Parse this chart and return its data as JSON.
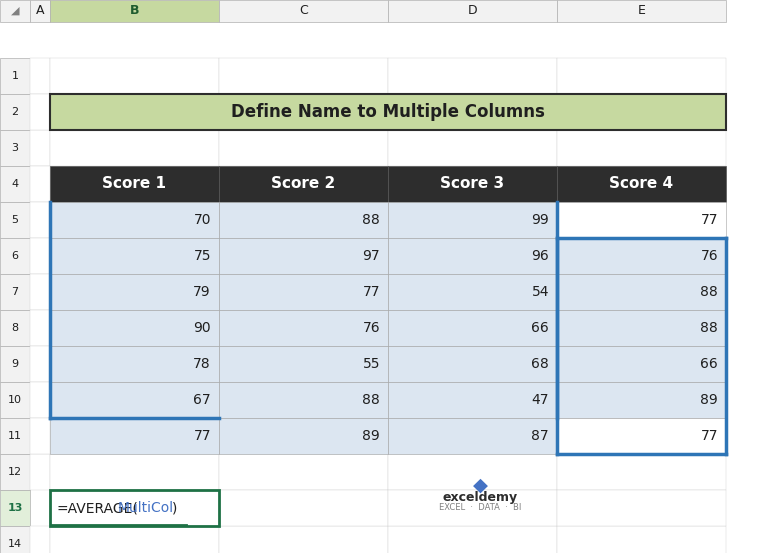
{
  "title": "Define Name to Multiple Columns",
  "title_bg": "#c6d9a0",
  "title_color": "#1f1f1f",
  "headers": [
    "Score 1",
    "Score 2",
    "Score 3",
    "Score 4"
  ],
  "data": [
    [
      70,
      88,
      99,
      77
    ],
    [
      75,
      97,
      96,
      76
    ],
    [
      79,
      77,
      54,
      88
    ],
    [
      90,
      76,
      66,
      88
    ],
    [
      78,
      55,
      68,
      66
    ],
    [
      67,
      88,
      47,
      89
    ],
    [
      77,
      89,
      87,
      77
    ]
  ],
  "header_bg": "#2d2d2d",
  "header_fg": "#ffffff",
  "cell_bg_blue": "#dce6f1",
  "cell_bg_white": "#ffffff",
  "formula_color_name": "#4472c4",
  "blue_border_color": "#2e75b6",
  "row_header_bg": "#f2f2f2",
  "col_header_bg": "#f2f2f2",
  "selected_col_bg": "#c6d9a0",
  "selected_row_bg": "#e2efda",
  "green_cell_border": "#1e7145",
  "grid_color": "#b0b0b0",
  "watermark_blue": "#4472c4",
  "watermark_dark": "#2d2d2d",
  "watermark_gray": "#808080"
}
